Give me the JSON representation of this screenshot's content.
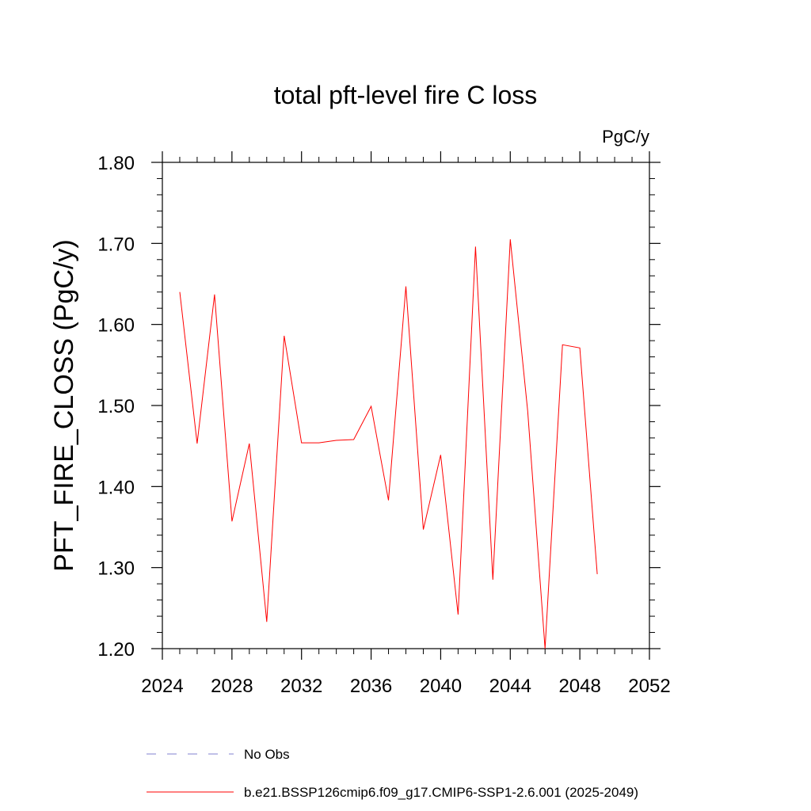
{
  "chart_data": {
    "type": "line",
    "title": "total pft-level fire C loss",
    "units_label": "PgC/y",
    "ylabel": "PFT_FIRE_CLOSS  (PgC/y)",
    "xlabel": "",
    "xlim": [
      2024,
      2052
    ],
    "ylim": [
      1.2,
      1.8
    ],
    "x_ticks": [
      2024,
      2028,
      2032,
      2036,
      2040,
      2044,
      2048,
      2052
    ],
    "x_tick_labels": [
      "2024",
      "2028",
      "2032",
      "2036",
      "2040",
      "2044",
      "2048",
      "2052"
    ],
    "y_ticks": [
      1.2,
      1.3,
      1.4,
      1.5,
      1.6,
      1.7,
      1.8
    ],
    "y_tick_labels": [
      "1.20",
      "1.30",
      "1.40",
      "1.50",
      "1.60",
      "1.70",
      "1.80"
    ],
    "x_minor_step": 1,
    "y_minor_step": 0.02,
    "series": [
      {
        "name": "b.e21.BSSP126cmip6.f09_g17.CMIP6-SSP1-2.6.001 (2025-2049)",
        "color": "#ff0000",
        "x": [
          2025,
          2026,
          2027,
          2028,
          2029,
          2030,
          2031,
          2032,
          2033,
          2034,
          2035,
          2036,
          2037,
          2038,
          2039,
          2040,
          2041,
          2042,
          2043,
          2044,
          2045,
          2046,
          2047,
          2048,
          2049
        ],
        "values": [
          1.64,
          1.453,
          1.637,
          1.357,
          1.453,
          1.233,
          1.586,
          1.454,
          1.454,
          1.457,
          1.458,
          1.499,
          1.383,
          1.647,
          1.347,
          1.439,
          1.242,
          1.696,
          1.285,
          1.705,
          1.493,
          1.2,
          1.575,
          1.571,
          1.292
        ]
      }
    ],
    "legend": [
      {
        "label": "No Obs",
        "color": "#8080d0",
        "style": "dashed"
      },
      {
        "label": "b.e21.BSSP126cmip6.f09_g17.CMIP6-SSP1-2.6.001 (2025-2049)",
        "color": "#ff0000",
        "style": "solid"
      }
    ]
  }
}
